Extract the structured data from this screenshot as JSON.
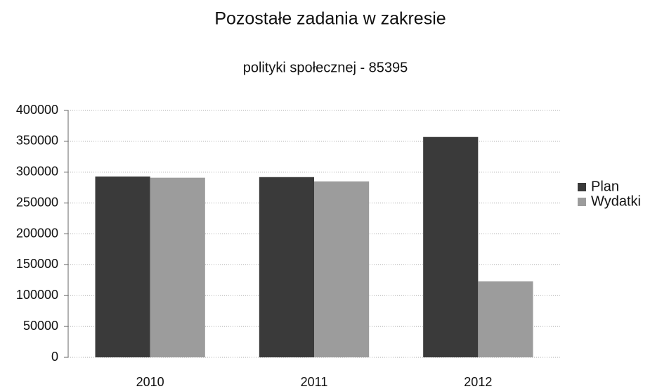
{
  "chart_data": {
    "type": "bar",
    "title": "Pozostałe zadania w zakresie",
    "subtitle": "polityki społecznej - 85395",
    "categories": [
      "2010",
      "2011",
      "2012"
    ],
    "series": [
      {
        "name": "Plan",
        "color": "#3a3a3a",
        "values": [
          293000,
          292000,
          357000
        ]
      },
      {
        "name": "Wydatki",
        "color": "#9c9c9c",
        "values": [
          291000,
          285000,
          123000
        ]
      }
    ],
    "ylim": [
      0,
      400000
    ],
    "yticks": [
      0,
      50000,
      100000,
      150000,
      200000,
      250000,
      300000,
      350000,
      400000
    ],
    "grid": true,
    "legend": "right"
  }
}
